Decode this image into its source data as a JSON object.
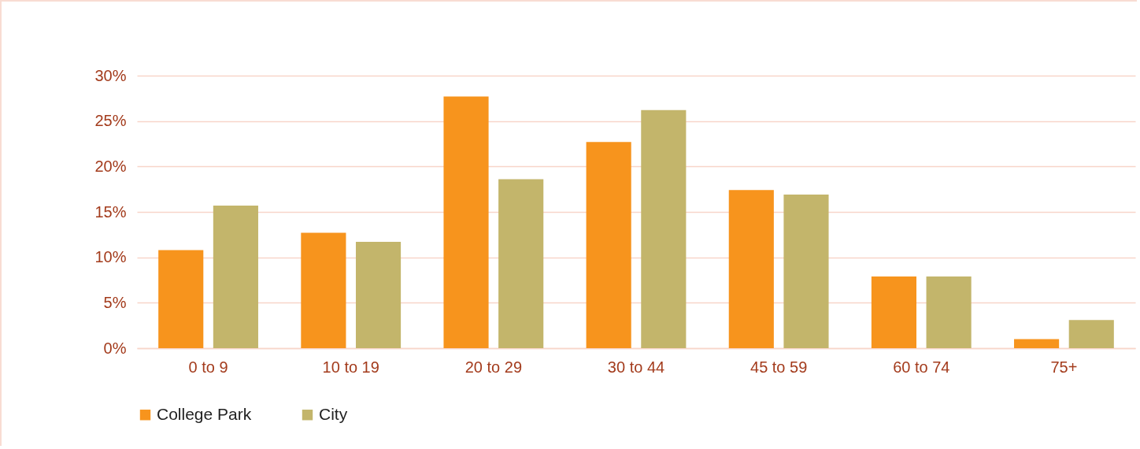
{
  "chart_data": {
    "type": "bar",
    "categories": [
      "0 to 9",
      "10 to 19",
      "20 to 29",
      "30 to 44",
      "45 to 59",
      "60 to 74",
      "75+"
    ],
    "series": [
      {
        "name": "College Park",
        "color": "#f7941d",
        "values": [
          10.8,
          12.7,
          27.7,
          22.7,
          17.4,
          7.9,
          1.0
        ]
      },
      {
        "name": "City",
        "color": "#c3b56b",
        "values": [
          15.7,
          11.7,
          18.6,
          26.2,
          16.9,
          7.9,
          3.1
        ]
      }
    ],
    "ylim": [
      0,
      30
    ],
    "yticks": [
      {
        "value": 0,
        "label": "0%"
      },
      {
        "value": 5,
        "label": "5%"
      },
      {
        "value": 10,
        "label": "10%"
      },
      {
        "value": 15,
        "label": "15%"
      },
      {
        "value": 20,
        "label": "20%"
      },
      {
        "value": 25,
        "label": "25%"
      },
      {
        "value": 30,
        "label": "30%"
      }
    ],
    "grid": "y",
    "legend": "bottom"
  }
}
